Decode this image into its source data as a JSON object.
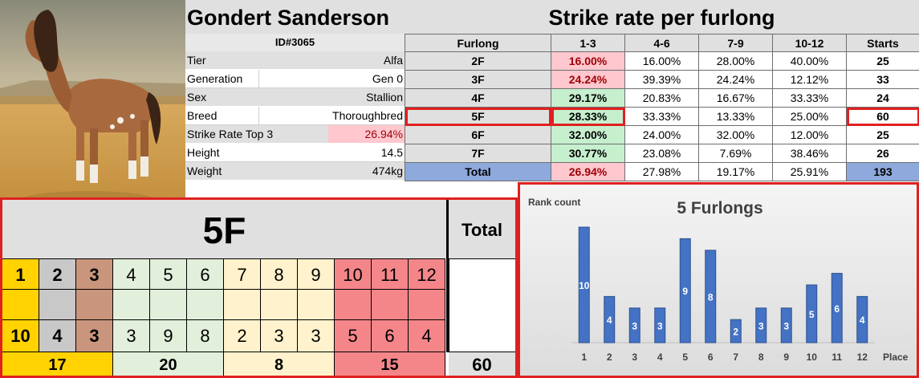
{
  "horse": {
    "name": "Gondert Sanderson",
    "id": "ID#3065",
    "attributes": [
      {
        "label": "Tier",
        "value": "Alfa"
      },
      {
        "label": "Generation",
        "value": "Gen 0"
      },
      {
        "label": "Sex",
        "value": "Stallion"
      },
      {
        "label": "Breed",
        "value": "Thoroughbred"
      },
      {
        "label": "Strike Rate Top 3",
        "value": "26.94%"
      },
      {
        "label": "Height",
        "value": "14.5"
      },
      {
        "label": "Weight",
        "value": "474kg"
      }
    ]
  },
  "strike_table": {
    "title": "Strike rate per furlong",
    "headers": [
      "Furlong",
      "1-3",
      "4-6",
      "7-9",
      "10-12",
      "Starts"
    ],
    "rows": [
      {
        "furlong": "2F",
        "r13": "16.00%",
        "r46": "16.00%",
        "r79": "28.00%",
        "r1012": "40.00%",
        "starts": "25"
      },
      {
        "furlong": "3F",
        "r13": "24.24%",
        "r46": "39.39%",
        "r79": "24.24%",
        "r1012": "12.12%",
        "starts": "33"
      },
      {
        "furlong": "4F",
        "r13": "29.17%",
        "r46": "20.83%",
        "r79": "16.67%",
        "r1012": "33.33%",
        "starts": "24"
      },
      {
        "furlong": "5F",
        "r13": "28.33%",
        "r46": "33.33%",
        "r79": "13.33%",
        "r1012": "25.00%",
        "starts": "60"
      },
      {
        "furlong": "6F",
        "r13": "32.00%",
        "r46": "24.00%",
        "r79": "32.00%",
        "r1012": "12.00%",
        "starts": "25"
      },
      {
        "furlong": "7F",
        "r13": "30.77%",
        "r46": "23.08%",
        "r79": "7.69%",
        "r1012": "38.46%",
        "starts": "26"
      },
      {
        "furlong": "Total",
        "r13": "26.94%",
        "r46": "27.98%",
        "r79": "19.17%",
        "r1012": "25.91%",
        "starts": "193"
      }
    ]
  },
  "placement": {
    "title": "5F",
    "total_label": "Total",
    "places": [
      "1",
      "2",
      "3",
      "4",
      "5",
      "6",
      "7",
      "8",
      "9",
      "10",
      "11",
      "12"
    ],
    "counts": [
      "10",
      "4",
      "3",
      "3",
      "9",
      "8",
      "2",
      "3",
      "3",
      "5",
      "6",
      "4"
    ],
    "group_sums": [
      "17",
      "20",
      "8",
      "15"
    ],
    "total": "60"
  },
  "colors": {
    "gold": "#ffd200",
    "grey": "#c8c8c8",
    "brown": "#c9957c",
    "green": "#e2efda",
    "cream": "#fff2cc",
    "red": "#f4868a",
    "bar": "#4472c4",
    "highlight": "#e02020"
  },
  "chart_data": {
    "type": "bar",
    "title": "5 Furlongs",
    "ylabel": "Rank count",
    "xlabel": "Place",
    "categories": [
      "1",
      "2",
      "3",
      "4",
      "5",
      "6",
      "7",
      "8",
      "9",
      "10",
      "11",
      "12"
    ],
    "values": [
      10,
      4,
      3,
      3,
      9,
      8,
      2,
      3,
      3,
      5,
      6,
      4
    ],
    "ylim": [
      0,
      10
    ],
    "grid": false,
    "legend": "none"
  }
}
